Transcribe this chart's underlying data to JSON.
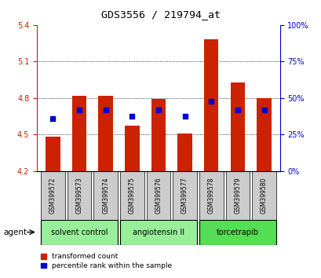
{
  "title": "GDS3556 / 219794_at",
  "samples": [
    "GSM399572",
    "GSM399573",
    "GSM399574",
    "GSM399575",
    "GSM399576",
    "GSM399577",
    "GSM399578",
    "GSM399579",
    "GSM399580"
  ],
  "transformed_count": [
    4.48,
    4.82,
    4.82,
    4.57,
    4.79,
    4.51,
    5.28,
    4.93,
    4.8
  ],
  "percentile_rank": [
    4.63,
    4.7,
    4.7,
    4.65,
    4.7,
    4.65,
    4.77,
    4.7,
    4.7
  ],
  "bar_bottom": 4.2,
  "ylim": [
    4.2,
    5.4
  ],
  "y2lim": [
    0,
    100
  ],
  "yticks": [
    4.2,
    4.5,
    4.8,
    5.1,
    5.4
  ],
  "y2ticks": [
    0,
    25,
    50,
    75,
    100
  ],
  "bar_color": "#cc2200",
  "dot_color": "#0000cc",
  "tick_color_left": "#cc2200",
  "tick_color_right": "#0000cc",
  "legend_items": [
    "transformed count",
    "percentile rank within the sample"
  ],
  "legend_colors": [
    "#cc2200",
    "#0000cc"
  ],
  "sample_bg_color": "#cccccc",
  "group_info": [
    {
      "label": "solvent control",
      "start": 0,
      "end": 2,
      "color": "#99ee99"
    },
    {
      "label": "angiotensin II",
      "start": 3,
      "end": 5,
      "color": "#99ee99"
    },
    {
      "label": "torcetrapib",
      "start": 6,
      "end": 8,
      "color": "#55dd55"
    }
  ],
  "grid_yticks": [
    4.5,
    4.8,
    5.1
  ]
}
